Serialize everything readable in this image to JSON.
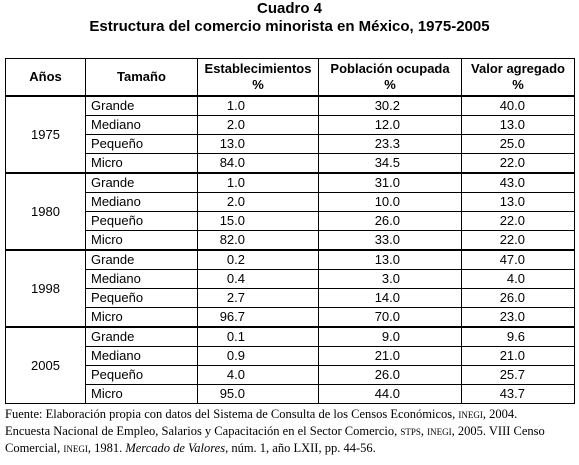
{
  "title": "Cuadro 4",
  "subtitle": "Estructura del comercio minorista en México, 1975-2005",
  "table": {
    "header": [
      "Años",
      "Tamaño",
      [
        "Establecimientos",
        "%"
      ],
      [
        "Población ocupada",
        "%"
      ],
      [
        "Valor agregado",
        "%"
      ]
    ],
    "groups": [
      {
        "year": "1975",
        "rows": [
          [
            "Grande",
            "1.0",
            "30.2",
            "40.0"
          ],
          [
            "Mediano",
            "2.0",
            "12.0",
            "13.0"
          ],
          [
            "Pequeño",
            "13.0",
            "23.3",
            "25.0"
          ],
          [
            "Micro",
            "84.0",
            "34.5",
            "22.0"
          ]
        ]
      },
      {
        "year": "1980",
        "rows": [
          [
            "Grande",
            "1.0",
            "31.0",
            "43.0"
          ],
          [
            "Mediano",
            "2.0",
            "10.0",
            "13.0"
          ],
          [
            "Pequeño",
            "15.0",
            "26.0",
            "22.0"
          ],
          [
            "Micro",
            "82.0",
            "33.0",
            "22.0"
          ]
        ]
      },
      {
        "year": "1998",
        "rows": [
          [
            "Grande",
            "0.2",
            "13.0",
            "47.0"
          ],
          [
            "Mediano",
            "0.4",
            "3.0",
            "4.0"
          ],
          [
            "Pequeño",
            "2.7",
            "14.0",
            "26.0"
          ],
          [
            "Micro",
            "96.7",
            "70.0",
            "23.0"
          ]
        ]
      },
      {
        "year": "2005",
        "rows": [
          [
            "Grande",
            "0.1",
            "9.0",
            "9.6"
          ],
          [
            "Mediano",
            "0.9",
            "21.0",
            "21.0"
          ],
          [
            "Pequeño",
            "4.0",
            "26.0",
            "25.7"
          ],
          [
            "Micro",
            "95.0",
            "44.0",
            "43.7"
          ]
        ]
      }
    ]
  },
  "footnote": {
    "segments": [
      "Fuente: Elaboración propia con datos del Sistema de Consulta de los Censos Económicos, ",
      "inegi",
      ", 2004.",
      "Encuesta Nacional de Empleo, Salarios y Capacitación en el Sector Comercio, ",
      "stps",
      ", ",
      "inegi",
      ", 2005. VIII Censo",
      "Comercial, ",
      "inegi",
      ", 1981. ",
      "Mercado de Valores,",
      " núm. 1, año LXII, pp. 44-56."
    ]
  }
}
